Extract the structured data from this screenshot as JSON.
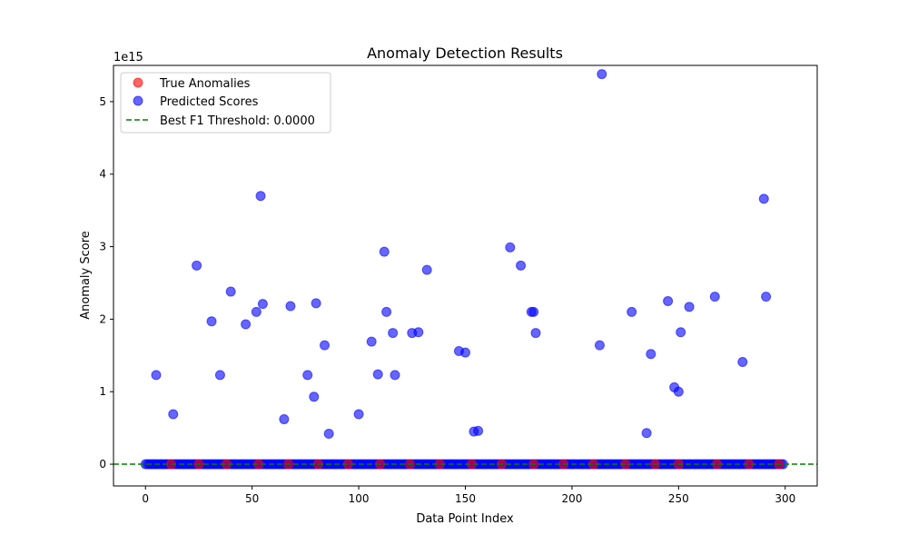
{
  "chart_data": {
    "type": "scatter",
    "title": "Anomaly Detection Results",
    "xlabel": "Data Point Index",
    "ylabel": "Anomaly Score",
    "y_multiplier_label": "1e15",
    "xlim": [
      -15,
      315
    ],
    "ylim": [
      -0.3,
      5.5
    ],
    "x_ticks": [
      0,
      50,
      100,
      150,
      200,
      250,
      300
    ],
    "y_ticks": [
      0,
      1,
      2,
      3,
      4,
      5
    ],
    "grid": false,
    "legend_position": "top-left",
    "series": [
      {
        "name": "True Anomalies",
        "kind": "scatter",
        "color": "#ff0000",
        "x": [
          12,
          25,
          38,
          53,
          67,
          81,
          95,
          110,
          124,
          138,
          153,
          167,
          182,
          196,
          210,
          225,
          239,
          250,
          268,
          283,
          297
        ],
        "y": [
          0,
          0,
          0,
          0,
          0,
          0,
          0,
          0,
          0,
          0,
          0,
          0,
          0,
          0,
          0,
          0,
          0,
          0,
          0,
          0,
          0
        ]
      },
      {
        "name": "Predicted Scores",
        "kind": "scatter",
        "color": "#0000ff",
        "range_zero": [
          0,
          299
        ],
        "x": [
          5,
          13,
          24,
          31,
          35,
          40,
          47,
          52,
          54,
          55,
          65,
          68,
          76,
          79,
          80,
          84,
          86,
          100,
          106,
          109,
          112,
          113,
          116,
          117,
          125,
          128,
          132,
          147,
          150,
          154,
          156,
          171,
          176,
          181,
          182,
          183,
          213,
          214,
          228,
          235,
          237,
          245,
          248,
          250,
          251,
          255,
          267,
          280,
          290,
          291
        ],
        "y": [
          1.23,
          0.69,
          2.74,
          1.97,
          1.23,
          2.38,
          1.93,
          2.1,
          3.7,
          2.21,
          0.62,
          2.18,
          1.23,
          0.93,
          2.22,
          1.64,
          0.42,
          0.69,
          1.69,
          1.24,
          2.93,
          2.1,
          1.81,
          1.23,
          1.81,
          1.82,
          2.68,
          1.56,
          1.54,
          0.45,
          0.46,
          2.99,
          2.74,
          2.1,
          2.1,
          1.81,
          1.64,
          5.38,
          2.1,
          0.43,
          1.52,
          2.25,
          1.06,
          1.0,
          1.82,
          2.17,
          2.31,
          1.41,
          3.66,
          2.31
        ]
      },
      {
        "name": "Best F1 Threshold: 0.0000",
        "kind": "hline",
        "color": "#008000",
        "y": 0.0
      }
    ]
  }
}
